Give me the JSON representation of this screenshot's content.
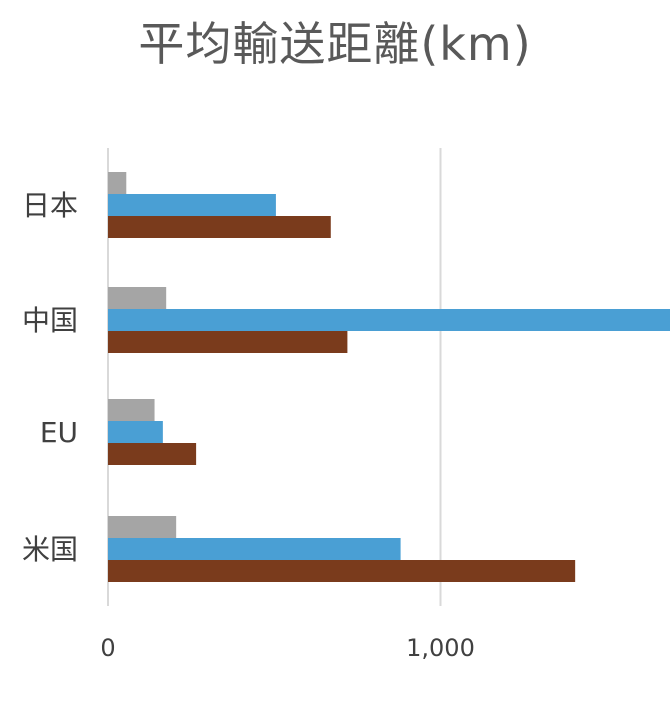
{
  "chart_data": {
    "type": "bar",
    "orientation": "horizontal",
    "title": "平均輸送距離(km)",
    "categories": [
      "日本",
      "中国",
      "EU",
      "米国"
    ],
    "series": [
      {
        "values": [
          55,
          175,
          140,
          205
        ],
        "color": "#a5a5a5"
      },
      {
        "values": [
          505,
          1700,
          165,
          880
        ],
        "color": "#4a9fd4"
      },
      {
        "values": [
          670,
          720,
          265,
          1405
        ],
        "color": "#7a3b1c"
      }
    ],
    "xlim": [
      0,
      1700
    ],
    "xticks": [
      0,
      1000
    ],
    "xtick_labels": [
      "0",
      "1,000"
    ],
    "grid": true
  }
}
